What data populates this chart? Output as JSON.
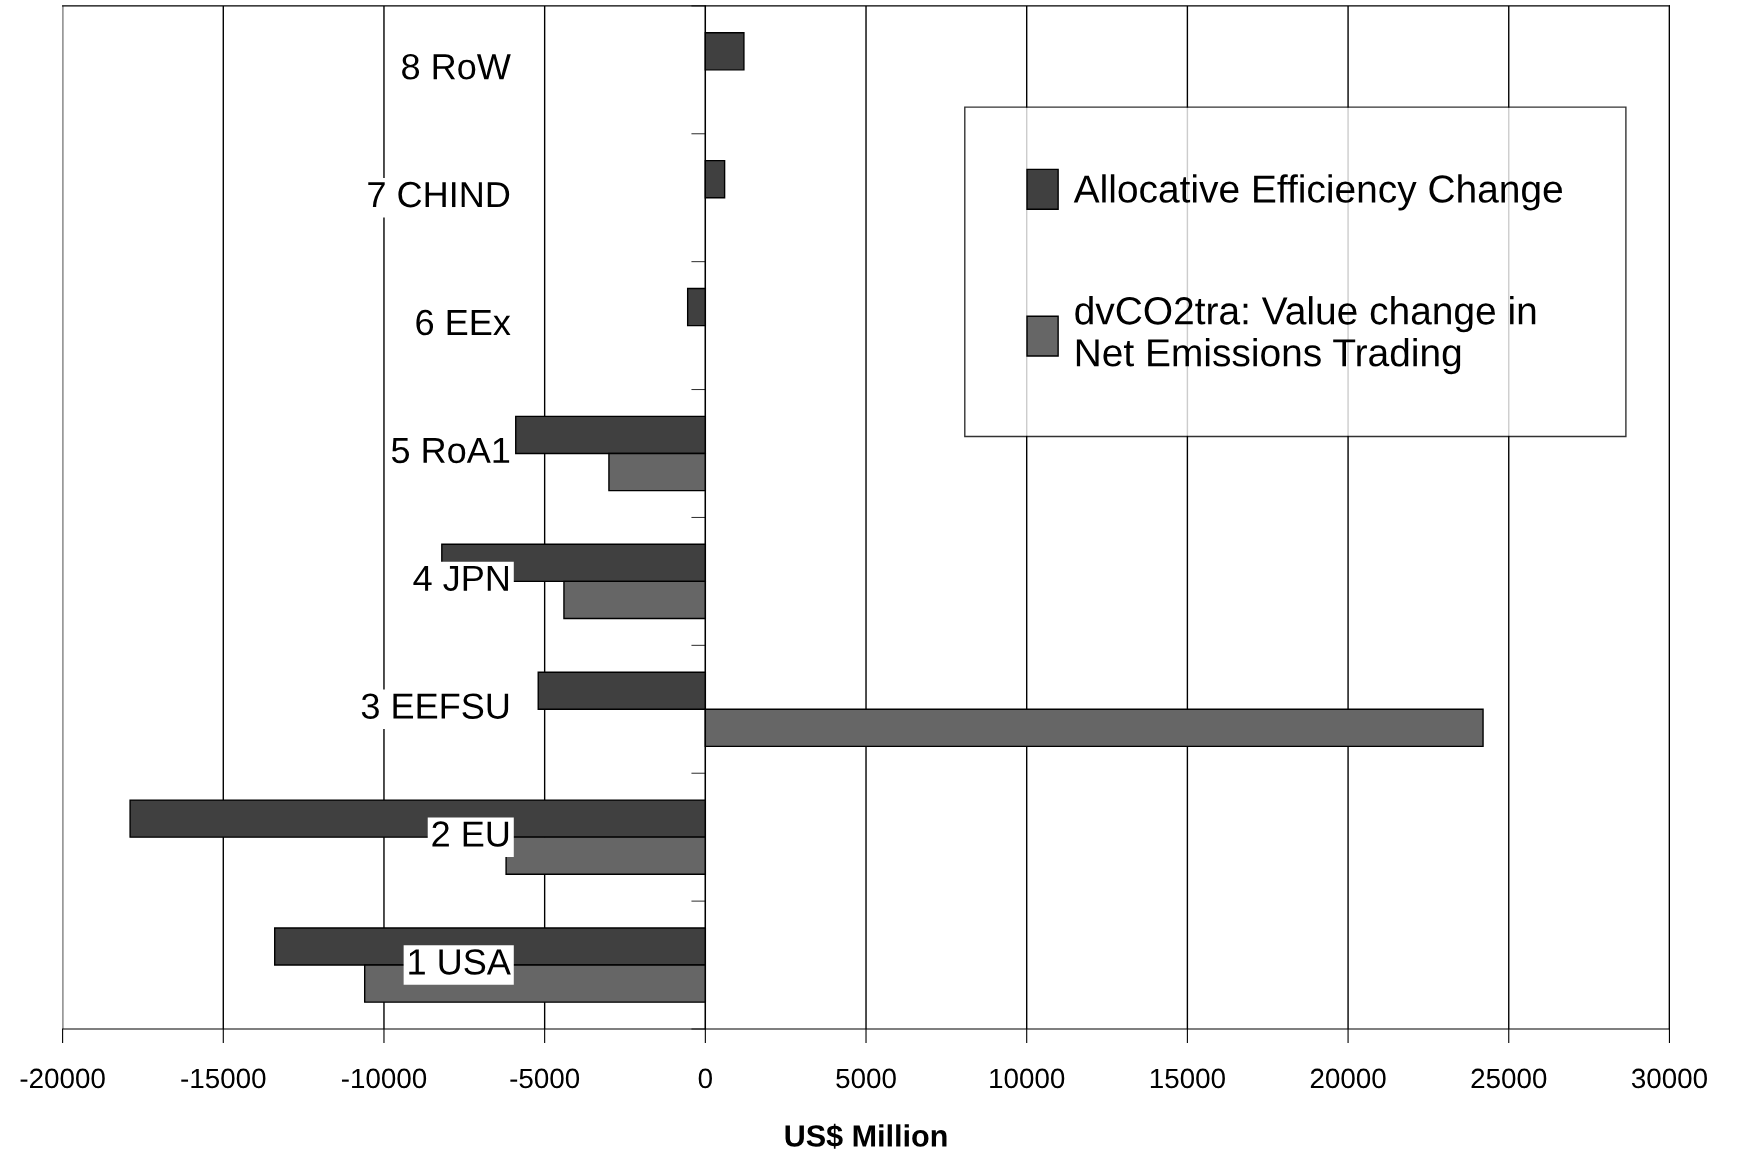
{
  "chart_data": {
    "type": "bar",
    "orientation": "horizontal",
    "xlabel": "US$ Million",
    "categories": [
      "8 RoW",
      "7 CHIND",
      "6 EEx",
      "5 RoA1",
      "4 JPN",
      "3 EEFSU",
      "2 EU",
      "1 USA"
    ],
    "series": [
      {
        "name": "Allocative Efficiency Change",
        "color": "#404040",
        "values": [
          1200,
          600,
          -550,
          -5900,
          -8200,
          -5200,
          -17900,
          -13400
        ]
      },
      {
        "name": "dvCO2tra: Value change in\nNet Emissions Trading",
        "color": "#666666",
        "values": [
          null,
          null,
          null,
          -3000,
          -4400,
          24200,
          -6200,
          -10600
        ]
      }
    ],
    "xlim": [
      -20000,
      30000
    ],
    "xticks": [
      -20000,
      -15000,
      -10000,
      -5000,
      0,
      5000,
      10000,
      15000,
      20000,
      25000,
      30000
    ],
    "grid": "x",
    "legend": "top right"
  }
}
